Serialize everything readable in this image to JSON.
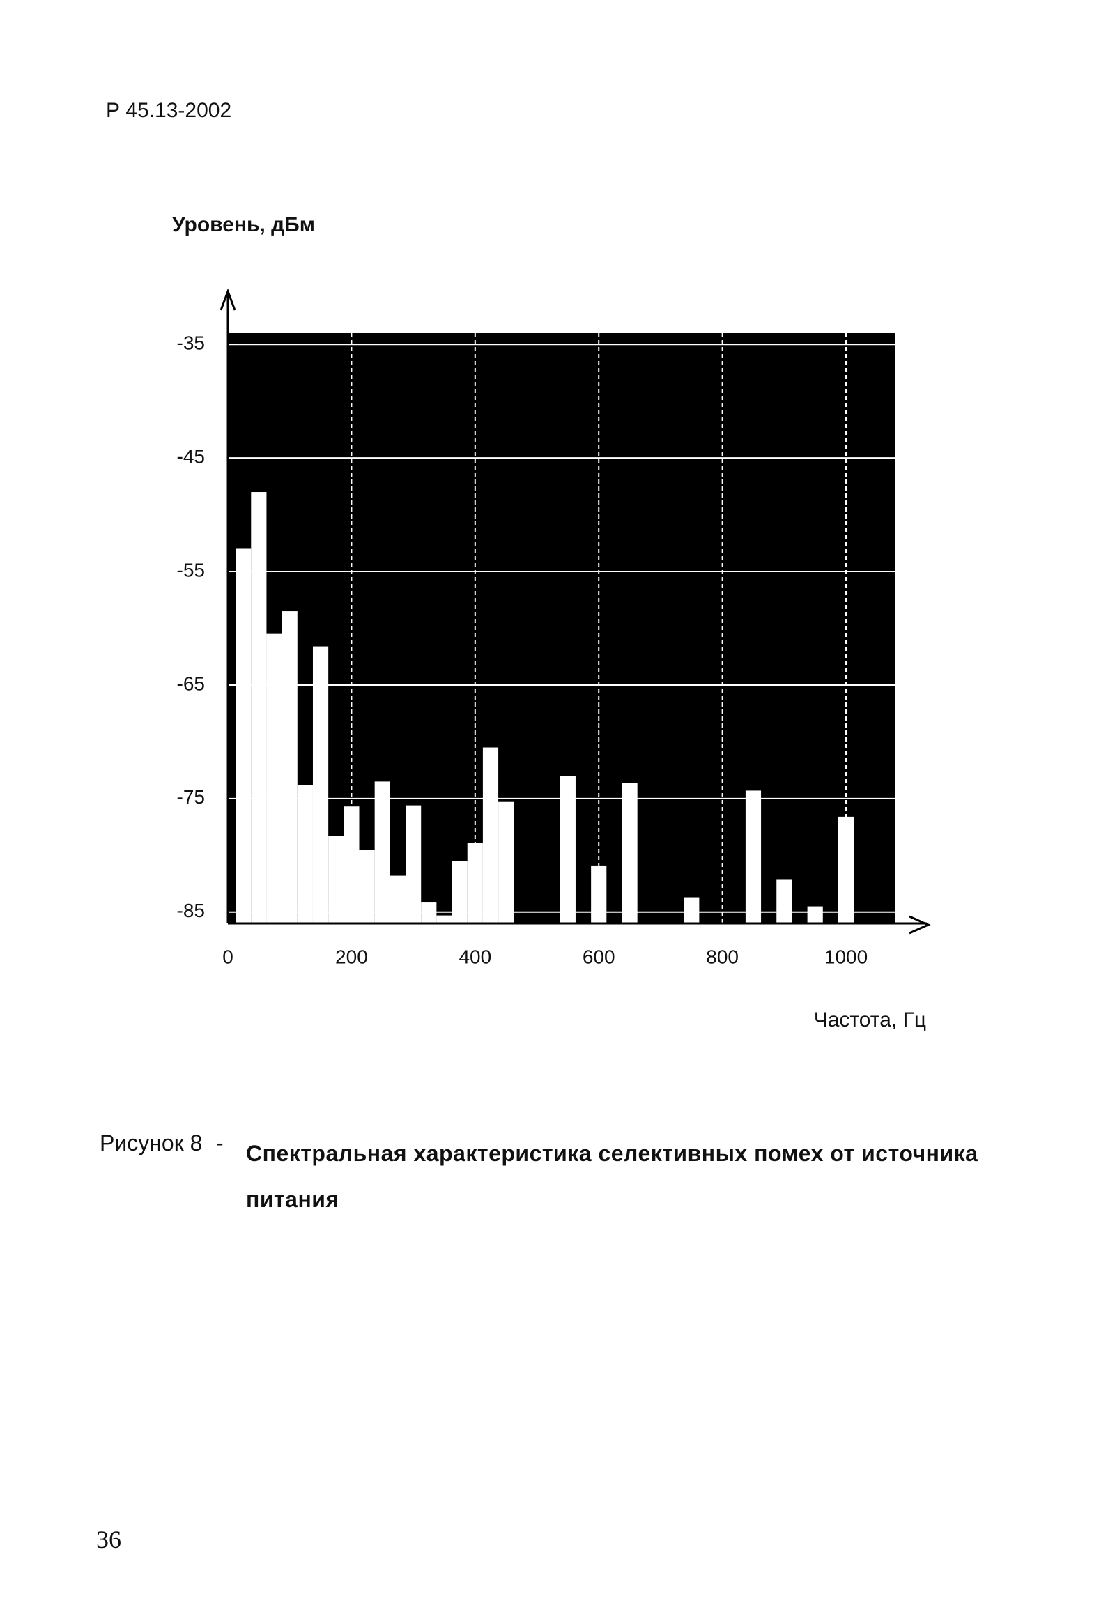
{
  "header": {
    "title": "Р 45.13-2002"
  },
  "chart_data": {
    "type": "bar",
    "y_label": "Уровень, дБм",
    "x_label": "Частота, Гц",
    "x": [
      25,
      50,
      75,
      100,
      125,
      150,
      175,
      200,
      225,
      250,
      275,
      300,
      325,
      350,
      375,
      400,
      425,
      450,
      550,
      600,
      650,
      750,
      850,
      900,
      950,
      1000
    ],
    "values": [
      -53.0,
      -48.0,
      -60.5,
      -58.5,
      -73.8,
      -61.6,
      -78.3,
      -75.7,
      -79.5,
      -73.5,
      -81.8,
      -75.6,
      -84.1,
      -85.3,
      -80.5,
      -78.9,
      -70.5,
      -75.3,
      -73.0,
      -80.9,
      -73.6,
      -83.7,
      -74.3,
      -82.1,
      -84.5,
      -76.6
    ],
    "color": "#ffffff",
    "background": "#000000",
    "xlim": [
      0,
      1080
    ],
    "xticks": [
      0,
      200,
      400,
      600,
      800,
      1000
    ],
    "ylim": [
      -86,
      -34
    ],
    "yticks": [
      -35,
      -45,
      -55,
      -65,
      -75,
      -85
    ],
    "grid": true
  },
  "caption": {
    "label": "Рисунок 8",
    "separator": "-",
    "text": "Спектральная характеристика селективных помех от источника питания"
  },
  "page_number": "36"
}
